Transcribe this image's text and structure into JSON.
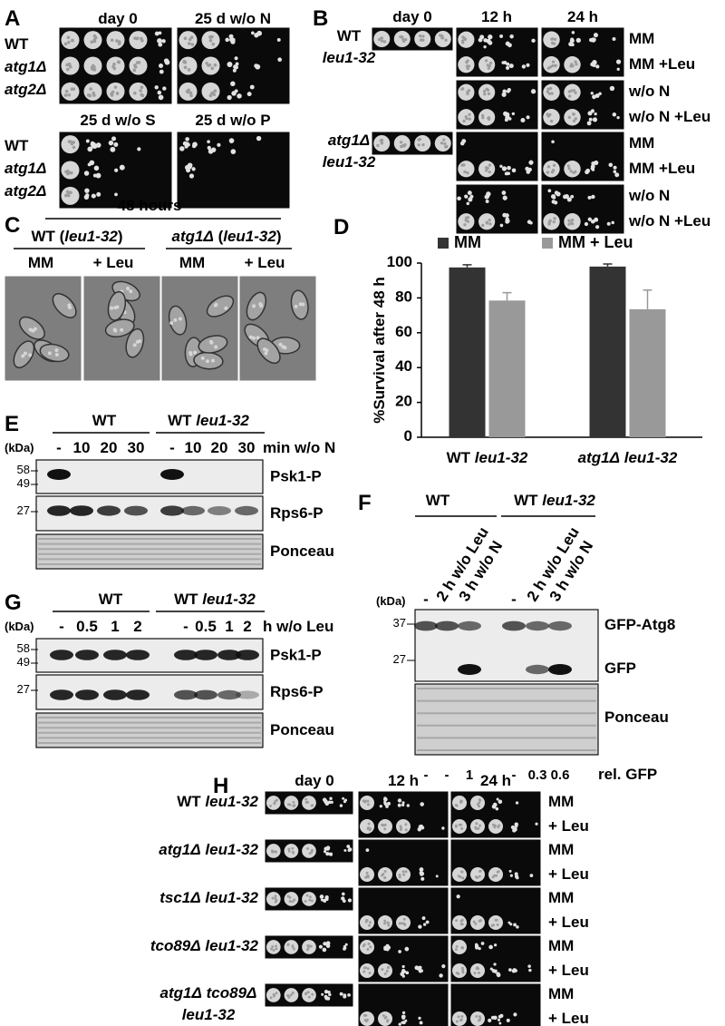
{
  "panels": {
    "A": {
      "label": "A",
      "top": {
        "columns": [
          "day 0",
          "25 d w/o N"
        ],
        "strains": [
          "WT",
          "atg1Δ",
          "atg2Δ"
        ]
      },
      "bottom": {
        "columns": [
          "25 d w/o S",
          "25 d w/o P"
        ],
        "strains": [
          "WT",
          "atg1Δ",
          "atg2Δ"
        ]
      }
    },
    "B": {
      "label": "B",
      "columns": [
        "day 0",
        "12 h",
        "24 h"
      ],
      "groups": [
        {
          "strain": [
            "WT",
            "leu1-32"
          ],
          "conditions": [
            "MM",
            "MM +Leu",
            "w/o N",
            "w/o N +Leu"
          ]
        },
        {
          "strain": [
            "atg1Δ",
            "leu1-32"
          ],
          "conditions": [
            "MM",
            "MM +Leu",
            "w/o N",
            "w/o N +Leu"
          ]
        }
      ]
    },
    "C": {
      "label": "C",
      "title": "48 hours",
      "groups": [
        {
          "strain": "WT (leu1-32)",
          "conditions": [
            "MM",
            "+ Leu"
          ]
        },
        {
          "strain": "atg1Δ (leu1-32)",
          "conditions": [
            "MM",
            "+ Leu"
          ]
        }
      ]
    },
    "D": {
      "label": "D"
    },
    "E": {
      "label": "E",
      "groups": [
        "WT",
        "WT leu1-32"
      ],
      "unit": "(kDa)",
      "lanes": [
        "-",
        "10",
        "20",
        "30",
        "-",
        "10",
        "20",
        "30"
      ],
      "lane_title": "min w/o N",
      "markers": [
        "58",
        "49",
        "27"
      ],
      "blots": [
        "Psk1-P",
        "Rps6-P",
        "Ponceau"
      ]
    },
    "F": {
      "label": "F",
      "groups": [
        "WT",
        "WT leu1-32"
      ],
      "unit": "(kDa)",
      "lanes": [
        "-",
        "2 h w/o Leu",
        "3 h w/o N",
        "-",
        "2 h w/o Leu",
        "3 h w/o N"
      ],
      "markers": [
        "37",
        "27"
      ],
      "blots": [
        "GFP-Atg8",
        "GFP",
        "Ponceau"
      ],
      "quantification": {
        "values": [
          "-",
          "-",
          "1",
          "-",
          "0.3",
          "0.6"
        ],
        "label": "rel. GFP"
      }
    },
    "G": {
      "label": "G",
      "groups": [
        "WT",
        "WT leu1-32"
      ],
      "unit": "(kDa)",
      "lanes": [
        "-",
        "0.5",
        "1",
        "2",
        "-",
        "0.5",
        "1",
        "2"
      ],
      "lane_title": "h w/o Leu",
      "markers": [
        "58",
        "49",
        "27"
      ],
      "blots": [
        "Psk1-P",
        "Rps6-P",
        "Ponceau"
      ]
    },
    "H": {
      "label": "H",
      "columns": [
        "day 0",
        "12 h",
        "24 h"
      ],
      "strains": [
        {
          "name": [
            "WT leu1-32"
          ],
          "conditions": [
            "MM",
            "+ Leu"
          ]
        },
        {
          "name": [
            "atg1Δ leu1-32"
          ],
          "conditions": [
            "MM",
            "+ Leu"
          ]
        },
        {
          "name": [
            "tsc1Δ leu1-32"
          ],
          "conditions": [
            "MM",
            "+ Leu"
          ]
        },
        {
          "name": [
            "tco89Δ leu1-32"
          ],
          "conditions": [
            "MM",
            "+ Leu"
          ]
        },
        {
          "name": [
            "atg1Δ tco89Δ",
            "leu1-32"
          ],
          "conditions": [
            "MM",
            "+ Leu"
          ]
        }
      ]
    }
  },
  "chart_data": {
    "type": "bar",
    "ylabel": "%Survival after 48 h",
    "categories": [
      "WT leu1-32",
      "atg1Δ leu1-32"
    ],
    "series": [
      {
        "name": "MM",
        "color": "#333333",
        "values": [
          97.5,
          98
        ],
        "errors": [
          1.5,
          1.5
        ]
      },
      {
        "name": "MM + Leu",
        "color": "#999999",
        "values": [
          78.5,
          73.5
        ],
        "errors": [
          4.5,
          11
        ]
      }
    ],
    "ylim": [
      0,
      100
    ],
    "yticks": [
      0,
      20,
      40,
      60,
      80,
      100
    ],
    "legend": "top"
  }
}
